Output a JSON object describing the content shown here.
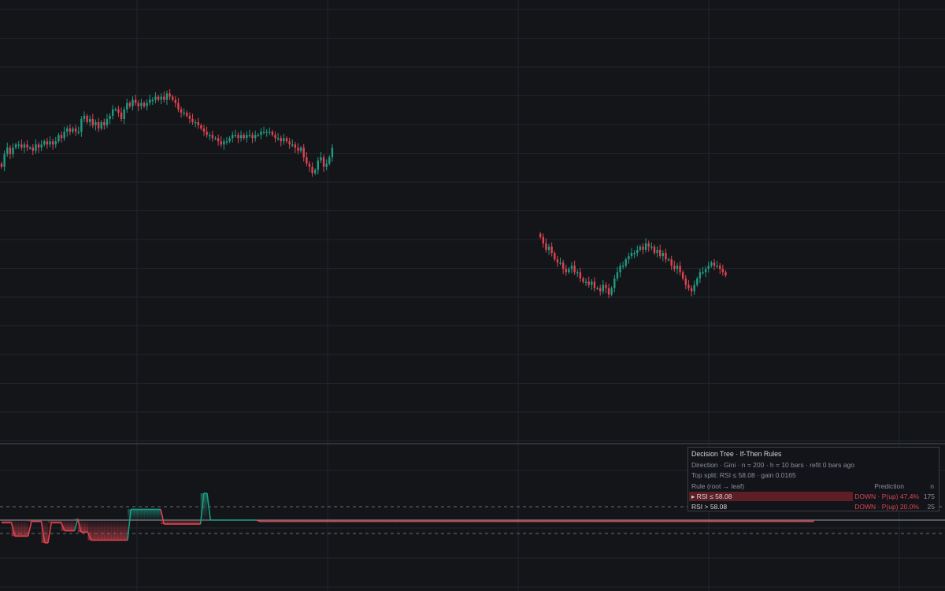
{
  "colors": {
    "background": "#131519",
    "grid": "#22252b",
    "up": "#1f9b83",
    "down": "#e0434f",
    "divider": "#3a3d44"
  },
  "chart_data": [
    {
      "type": "candlestick",
      "panel": "price",
      "grid": true,
      "legend": "none",
      "ylim": [
        0,
        100
      ],
      "series": [
        {
          "segment": 1,
          "x_start": 0,
          "close": [
            86,
            90,
            92,
            90,
            92,
            93,
            93,
            92,
            93,
            92,
            92,
            91,
            93,
            92,
            93,
            94,
            93,
            94,
            93,
            94,
            96,
            95,
            97,
            98,
            97,
            98,
            97,
            97,
            101,
            102,
            100,
            101,
            99,
            100,
            98,
            100,
            99,
            101,
            102,
            104,
            104,
            103,
            101,
            104,
            106,
            105,
            107,
            106,
            105,
            106,
            105,
            106,
            107,
            107,
            108,
            107,
            108,
            107,
            109,
            108,
            107,
            106,
            104,
            103,
            103,
            102,
            101,
            100,
            100,
            99,
            98,
            97,
            96,
            96,
            95,
            95,
            94,
            93,
            94,
            94,
            95,
            96,
            96,
            95,
            96,
            95,
            96,
            96,
            95,
            96,
            96,
            97,
            97,
            97,
            97,
            96,
            95,
            95,
            94,
            95,
            94,
            93,
            93,
            92,
            91,
            92,
            89,
            87,
            86,
            84,
            85,
            88,
            89,
            86,
            87,
            89,
            92
          ]
        },
        {
          "segment": 2,
          "x_start": 189,
          "close": [
            64,
            62,
            60,
            61,
            59,
            57,
            56,
            56,
            54,
            53,
            54,
            55,
            53,
            53,
            51,
            50,
            50,
            49,
            50,
            48,
            48,
            47,
            49,
            48,
            46,
            48,
            51,
            53,
            55,
            55,
            57,
            58,
            59,
            59,
            60,
            61,
            60,
            62,
            61,
            61,
            59,
            60,
            58,
            59,
            57,
            57,
            55,
            54,
            55,
            53,
            51,
            49,
            48,
            47,
            49,
            51,
            53,
            53,
            54,
            55,
            56,
            55,
            55,
            54,
            53,
            52
          ]
        }
      ]
    },
    {
      "type": "line",
      "panel": "oscillator",
      "name": "P(up)",
      "ylim": [
        0,
        1
      ],
      "reference_lines": [
        0.6,
        0.5,
        0.4
      ],
      "x_start": 0,
      "values": [
        0.48,
        0.48,
        0.48,
        0.48,
        0.38,
        0.38,
        0.38,
        0.38,
        0.38,
        0.49,
        0.49,
        0.49,
        0.49,
        0.33,
        0.33,
        0.48,
        0.48,
        0.48,
        0.48,
        0.42,
        0.42,
        0.42,
        0.42,
        0.51,
        0.41,
        0.41,
        0.41,
        0.35,
        0.35,
        0.35,
        0.35,
        0.35,
        0.35,
        0.35,
        0.35,
        0.35,
        0.35,
        0.35,
        0.35,
        0.58,
        0.58,
        0.58,
        0.58,
        0.58,
        0.58,
        0.58,
        0.58,
        0.58,
        0.58,
        0.47,
        0.47,
        0.47,
        0.47,
        0.47,
        0.47,
        0.47,
        0.47,
        0.47,
        0.47,
        0.47,
        0.47,
        0.7,
        0.7,
        0.5,
        0.5,
        0.5,
        0.5,
        0.5,
        0.5,
        0.5,
        0.5,
        0.5,
        0.5,
        0.5,
        0.5,
        0.5,
        0.5,
        0.5,
        0.49,
        0.49,
        0.49,
        0.49,
        0.49,
        0.49,
        0.49,
        0.49,
        0.49,
        0.49,
        0.49,
        0.49,
        0.49,
        0.49,
        0.49,
        0.49,
        0.49,
        0.49,
        0.49,
        0.49,
        0.49,
        0.49,
        0.49,
        0.49,
        0.49,
        0.49,
        0.49,
        0.49,
        0.49,
        0.49,
        0.49,
        0.49,
        0.49,
        0.49,
        0.49,
        0.49,
        0.49,
        0.49,
        0.49,
        0.49,
        0.49,
        0.49,
        0.49,
        0.49,
        0.49,
        0.49,
        0.49,
        0.49,
        0.49,
        0.49,
        0.49,
        0.49,
        0.49,
        0.49,
        0.49,
        0.49,
        0.49,
        0.49,
        0.49,
        0.49,
        0.49,
        0.49,
        0.49,
        0.49,
        0.49,
        0.49,
        0.49,
        0.49,
        0.49,
        0.49,
        0.49,
        0.49,
        0.49,
        0.49,
        0.49,
        0.49,
        0.49,
        0.49,
        0.49,
        0.49,
        0.49,
        0.49,
        0.49,
        0.49,
        0.49,
        0.49,
        0.49,
        0.49,
        0.49,
        0.49,
        0.49,
        0.49,
        0.49,
        0.49,
        0.49,
        0.49,
        0.49,
        0.49,
        0.49,
        0.49,
        0.49,
        0.49,
        0.49,
        0.49,
        0.49,
        0.49,
        0.49,
        0.49,
        0.49,
        0.49,
        0.49,
        0.49,
        0.49,
        0.49,
        0.49,
        0.49,
        0.49,
        0.49,
        0.49,
        0.49,
        0.49,
        0.49,
        0.49,
        0.49,
        0.49,
        0.49,
        0.49,
        0.49,
        0.49,
        0.49,
        0.49,
        0.49,
        0.49,
        0.49,
        0.49,
        0.49,
        0.49,
        0.49,
        0.49,
        0.49,
        0.49,
        0.49,
        0.49,
        0.49,
        0.49,
        0.49,
        0.49,
        0.49,
        0.49,
        0.49,
        0.49,
        0.49,
        0.49,
        0.49,
        0.49,
        0.49,
        0.49,
        0.49,
        0.49,
        0.49,
        0.49,
        0.49,
        0.49,
        0.49,
        0.49,
        0.49,
        0.49,
        0.49
      ]
    }
  ],
  "panel": {
    "title": "Decision Tree · If-Then Rules",
    "line1": "Direction · Gini · n = 200 · h = 10 bars · refit 0 bars ago",
    "line2": "Top split: RSI ≤ 58.08 · gain 0.0165",
    "header": {
      "rule": "Rule (root → leaf)",
      "prediction": "Prediction",
      "n": "n"
    },
    "rows": [
      {
        "rule": "▸ RSI ≤ 58.08",
        "prediction": "DOWN · P(up) 47.4%",
        "n": "175"
      },
      {
        "rule": "RSI > 58.08",
        "prediction": "DOWN · P(up) 20.0%",
        "n": "25"
      }
    ]
  }
}
